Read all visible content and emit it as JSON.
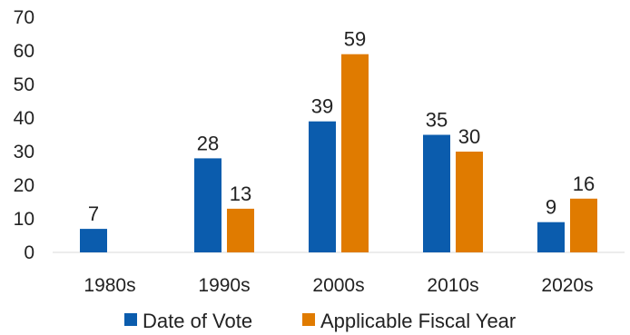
{
  "chart_data": {
    "type": "bar",
    "title": "",
    "xlabel": "",
    "ylabel": "",
    "categories": [
      "1980s",
      "1990s",
      "2000s",
      "2010s",
      "2020s"
    ],
    "series": [
      {
        "name": "Date of Vote",
        "color": "#0B5CAD",
        "values": [
          7,
          28,
          39,
          35,
          9
        ],
        "labels": [
          "7",
          "28",
          "39",
          "35",
          "9"
        ]
      },
      {
        "name": "Applicable Fiscal Year",
        "color": "#E07B00",
        "values": [
          null,
          13,
          59,
          30,
          16
        ],
        "labels": [
          "",
          "13",
          "59",
          "30",
          "16"
        ]
      }
    ],
    "ylim": [
      0,
      70
    ],
    "yticks": [
      0,
      10,
      20,
      30,
      40,
      50,
      60,
      70
    ],
    "ytick_labels": [
      "0",
      "10",
      "20",
      "30",
      "40",
      "50",
      "60",
      "70"
    ],
    "grid": false,
    "legend_position": "bottom"
  }
}
